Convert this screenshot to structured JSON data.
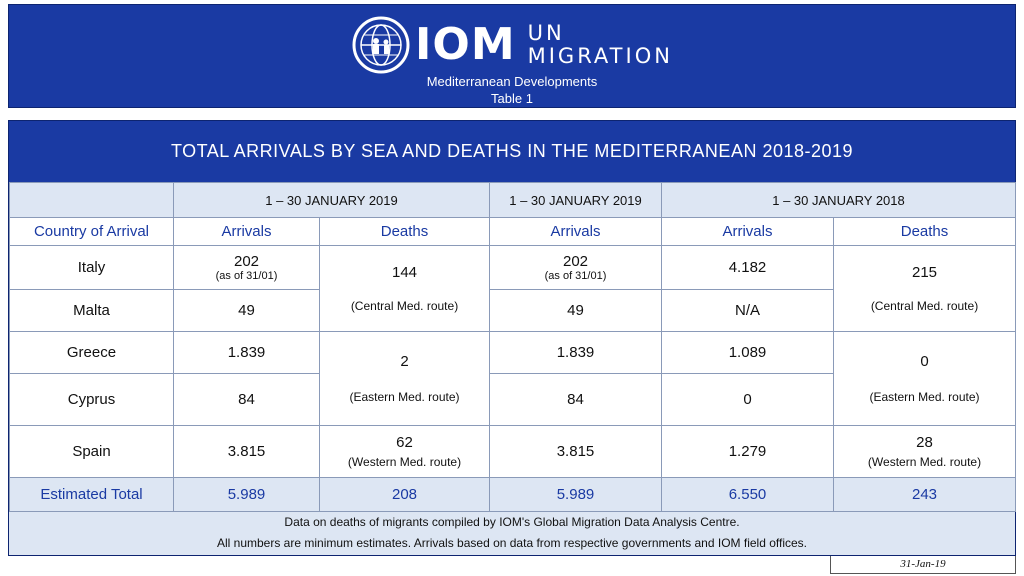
{
  "header": {
    "brand": "IOM",
    "un": "UN",
    "migration": "MIGRATION",
    "subtitle": "Mediterranean Developments",
    "table_label": "Table 1"
  },
  "title": "TOTAL ARRIVALS BY SEA AND DEATHS IN THE MEDITERRANEAN 2018-2019",
  "periods": [
    "1 – 30 JANUARY 2019",
    "1 – 30 JANUARY 2019",
    "1 – 30 JANUARY 2018"
  ],
  "columns": {
    "country": "Country of Arrival",
    "arrivals": "Arrivals",
    "deaths": "Deaths"
  },
  "rows": [
    {
      "country": "Italy",
      "a2019": "202",
      "a2019_note": "(as of 31/01)",
      "b2019": "202",
      "b2019_note": "(as of 31/01)",
      "a2018": "4.182"
    },
    {
      "country": "Malta",
      "a2019": "49",
      "b2019": "49",
      "a2018": "N/A"
    },
    {
      "country": "Greece",
      "a2019": "1.839",
      "b2019": "1.839",
      "a2018": "1.089"
    },
    {
      "country": "Cyprus",
      "a2019": "84",
      "b2019": "84",
      "a2018": "0"
    },
    {
      "country": "Spain",
      "a2019": "3.815",
      "b2019": "3.815",
      "a2018": "1.279"
    }
  ],
  "deaths2019": [
    {
      "value": "144",
      "route": "(Central Med. route)"
    },
    {
      "value": "2",
      "route": "(Eastern Med. route)"
    },
    {
      "value": "62",
      "route": "(Western Med. route)"
    }
  ],
  "deaths2018": [
    {
      "value": "215",
      "route": "(Central Med. route)"
    },
    {
      "value": "0",
      "route": "(Eastern Med. route)"
    },
    {
      "value": "28",
      "route": "(Western Med. route)"
    }
  ],
  "total": {
    "label": "Estimated Total",
    "a2019": "5.989",
    "d2019": "208",
    "b2019": "5.989",
    "a2018": "6.550",
    "d2018": "243"
  },
  "notes": [
    "Data on deaths of migrants compiled by IOM's Global Migration Data Analysis Centre.",
    "All numbers are minimum estimates. Arrivals based on data from respective governments and IOM field offices."
  ],
  "date": "31-Jan-19",
  "colors": {
    "brand_blue": "#1a3aa3",
    "light_blue": "#dde6f3"
  }
}
